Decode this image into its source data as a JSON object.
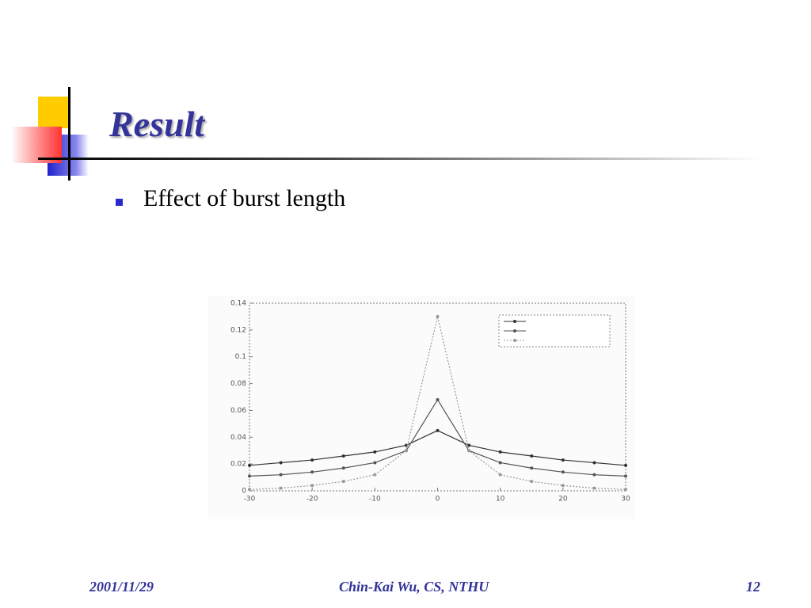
{
  "slide": {
    "title": "Result",
    "bullets": [
      "Effect of burst length"
    ],
    "footer": {
      "date": "2001/11/29",
      "author": "Chin-Kai Wu, CS, NTHU",
      "page": "12"
    }
  },
  "chart_data": {
    "type": "line",
    "x": [
      -30,
      -25,
      -20,
      -15,
      -10,
      -5,
      0,
      5,
      10,
      15,
      20,
      25,
      30
    ],
    "series": [
      {
        "color": "#333",
        "values": [
          0.019,
          0.021,
          0.023,
          0.026,
          0.029,
          0.034,
          0.045,
          0.034,
          0.029,
          0.026,
          0.023,
          0.021,
          0.019
        ]
      },
      {
        "color": "#555",
        "values": [
          0.011,
          0.012,
          0.014,
          0.017,
          0.021,
          0.03,
          0.068,
          0.03,
          0.021,
          0.017,
          0.014,
          0.012,
          0.011
        ]
      },
      {
        "color": "#999",
        "values": [
          0.001,
          0.002,
          0.004,
          0.007,
          0.012,
          0.03,
          0.13,
          0.03,
          0.012,
          0.007,
          0.004,
          0.002,
          0.001
        ]
      }
    ],
    "xlim": [
      -30,
      30
    ],
    "xticks": [
      -30,
      -20,
      -10,
      0,
      10,
      20,
      30
    ],
    "ylim": [
      0,
      0.14
    ],
    "yticks": [
      0,
      0.02,
      0.04,
      0.06,
      0.08,
      0.1,
      0.12,
      0.14
    ]
  }
}
